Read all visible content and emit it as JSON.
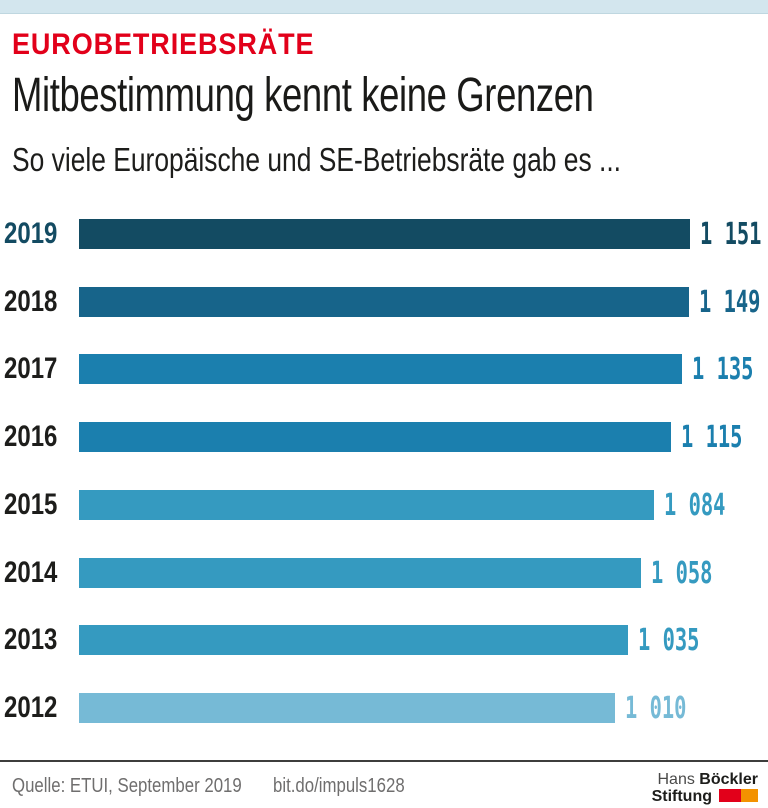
{
  "header": {
    "kicker": "EUROBETRIEBSRÄTE",
    "title": "Mitbestimmung kennt keine Grenzen",
    "subtitle": "So viele Europäische und SE-Betriebsräte gab es ..."
  },
  "chart_data": {
    "type": "bar",
    "orientation": "horizontal",
    "categories": [
      "2019",
      "2018",
      "2017",
      "2016",
      "2015",
      "2014",
      "2013",
      "2012"
    ],
    "values": [
      1151,
      1149,
      1135,
      1115,
      1084,
      1058,
      1035,
      1010
    ],
    "value_labels": [
      "1 151",
      "1 149",
      "1 135",
      "1 115",
      "1 084",
      "1 058",
      "1 035",
      "1 010"
    ],
    "bar_colors": [
      "#134b62",
      "#17648a",
      "#1b7fae",
      "#1b7fae",
      "#359ac0",
      "#359ac0",
      "#359ac0",
      "#76bad6"
    ],
    "highlight_index": 0,
    "xlim": [
      0,
      1151
    ],
    "grid": false,
    "legend": "none",
    "value_label_position": "right-of-bar"
  },
  "footer": {
    "source": "Quelle: ETUI, September 2019",
    "link": "bit.do/impuls1628",
    "logo": {
      "name_regular": "Hans",
      "name_bold": "Böckler",
      "line2": "Stiftung",
      "square_colors": [
        "#e2001a",
        "#f39200"
      ]
    }
  },
  "colors": {
    "accent_red": "#e2001a",
    "top_strip": "#d3e6ee",
    "text_dark": "#1d1d1b",
    "footer_text": "#6f6e6e",
    "highlight_year": "#134b62"
  }
}
